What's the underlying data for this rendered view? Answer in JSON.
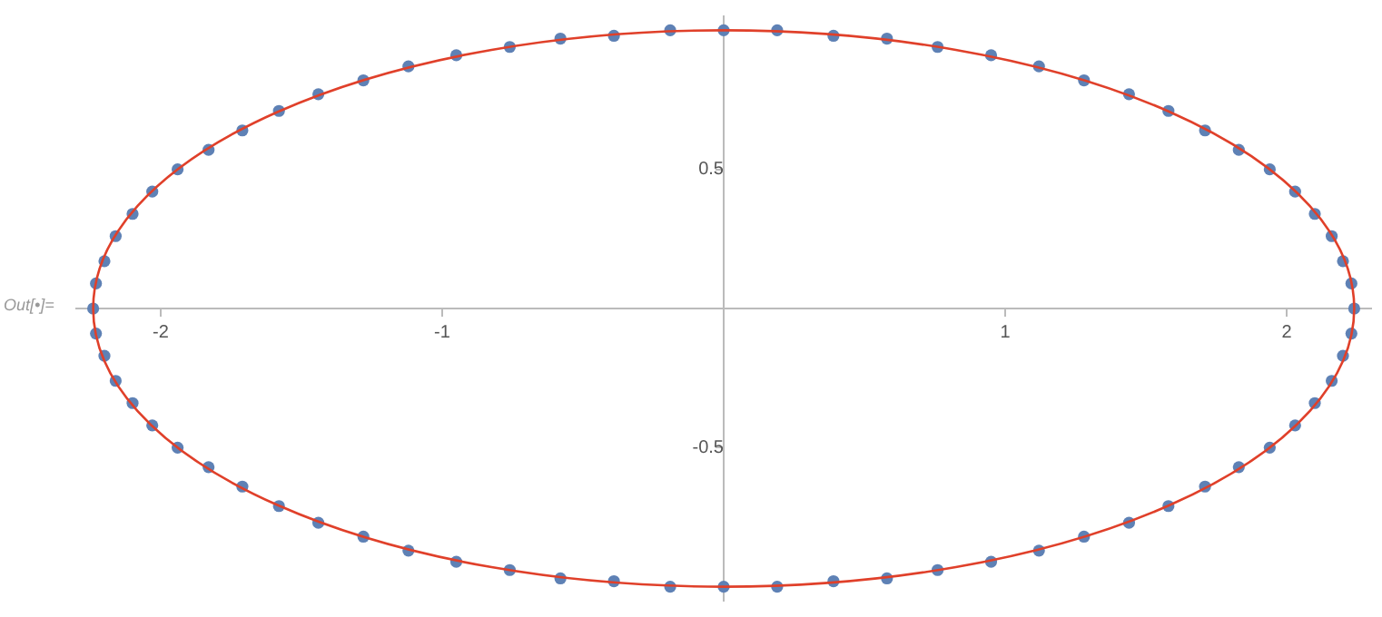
{
  "chart_data": {
    "type": "scatter",
    "xlim": [
      -2.3,
      2.3
    ],
    "ylim": [
      -1.05,
      1.05
    ],
    "xticks": [
      -2,
      -1,
      1,
      2
    ],
    "yticks": [
      -0.5,
      0.5
    ],
    "grid": false,
    "legend": false,
    "annotations": [
      "Out[•]="
    ],
    "series": [
      {
        "type": "scatter",
        "marker": "circle",
        "color": "#5e81b5",
        "x": [
          2.24,
          2.23,
          2.2,
          2.16,
          2.1,
          2.03,
          1.94,
          1.83,
          1.71,
          1.58,
          1.44,
          1.28,
          1.12,
          0.95,
          0.76,
          0.58,
          0.39,
          0.19,
          0,
          -0.19,
          -0.39,
          -0.58,
          -0.76,
          -0.95,
          -1.12,
          -1.28,
          -1.44,
          -1.58,
          -1.71,
          -1.83,
          -1.94,
          -2.03,
          -2.1,
          -2.16,
          -2.2,
          -2.23,
          -2.24,
          -2.23,
          -2.2,
          -2.16,
          -2.1,
          -2.03,
          -1.94,
          -1.83,
          -1.71,
          -1.58,
          -1.44,
          -1.28,
          -1.12,
          -0.95,
          -0.76,
          -0.58,
          -0.39,
          -0.19,
          0,
          0.19,
          0.39,
          0.58,
          0.76,
          0.95,
          1.12,
          1.28,
          1.44,
          1.58,
          1.71,
          1.83,
          1.94,
          2.03,
          2.1,
          2.16,
          2.2,
          2.23
        ],
        "values": [
          0,
          0.09,
          0.17,
          0.26,
          0.34,
          0.42,
          0.5,
          0.57,
          0.64,
          0.71,
          0.77,
          0.82,
          0.87,
          0.91,
          0.94,
          0.97,
          0.98,
          1,
          1,
          1,
          0.98,
          0.97,
          0.94,
          0.91,
          0.87,
          0.82,
          0.77,
          0.71,
          0.64,
          0.57,
          0.5,
          0.42,
          0.34,
          0.26,
          0.17,
          0.09,
          0,
          -0.09,
          -0.17,
          -0.26,
          -0.34,
          -0.42,
          -0.5,
          -0.57,
          -0.64,
          -0.71,
          -0.77,
          -0.82,
          -0.87,
          -0.91,
          -0.94,
          -0.97,
          -0.98,
          -1,
          -1,
          -1,
          -0.98,
          -0.97,
          -0.94,
          -0.91,
          -0.87,
          -0.82,
          -0.77,
          -0.71,
          -0.64,
          -0.57,
          -0.5,
          -0.42,
          -0.34,
          -0.26,
          -0.17,
          -0.09
        ]
      }
    ]
  }
}
